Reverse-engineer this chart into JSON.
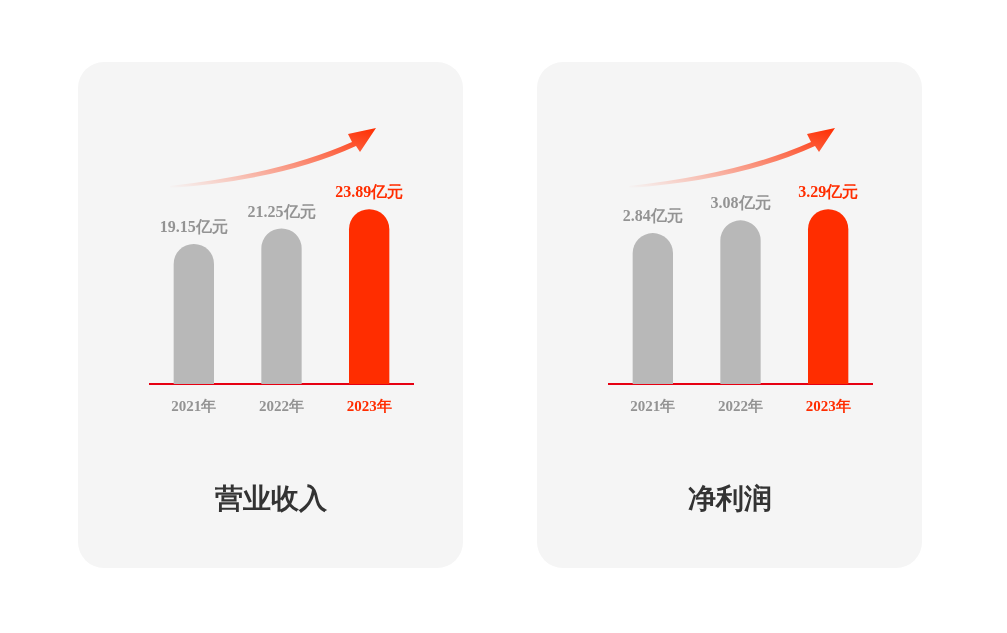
{
  "chart_data": [
    {
      "type": "bar",
      "title": "营业收入",
      "categories": [
        "2021年",
        "2022年",
        "2023年"
      ],
      "values": [
        19.15,
        21.25,
        23.89
      ],
      "colors": [
        "#b8b8b8",
        "#b8b8b8",
        "#ff2d00"
      ],
      "value_labels": [
        "19.15亿元",
        "21.25亿元",
        "23.89亿元"
      ]
    },
    {
      "type": "bar",
      "title": "净利润",
      "categories": [
        "2021年",
        "2022年",
        "2023年"
      ],
      "values": [
        2.84,
        3.08,
        3.29
      ],
      "colors": [
        "#b8b8b8",
        "#b8b8b8",
        "#ff2d00"
      ],
      "value_labels": [
        "2.84亿元",
        "3.08亿元",
        "3.29亿元"
      ]
    }
  ]
}
